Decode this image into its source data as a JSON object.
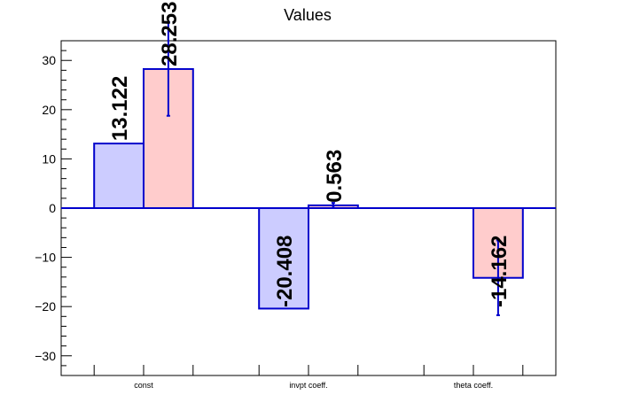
{
  "chart_data": {
    "type": "bar",
    "title": "Values",
    "xlabel": "",
    "ylabel": "",
    "ylim": [
      -34,
      34
    ],
    "yticks": [
      -30,
      -20,
      -10,
      0,
      10,
      20,
      30
    ],
    "ytick_labels": [
      "−30",
      "−20",
      "−10",
      "0",
      "10",
      "20",
      "30"
    ],
    "categories": [
      "const",
      "invpt coeff.",
      "theta coeff."
    ],
    "series": [
      {
        "color": "#ccccff",
        "values": [
          13.122,
          -20.408,
          null
        ],
        "labels": [
          "13.122",
          "-20.408",
          ""
        ],
        "errors": [
          0,
          0,
          0
        ]
      },
      {
        "color": "#ffcccc",
        "values": [
          28.253,
          0.563,
          -14.162
        ],
        "labels": [
          "28.253",
          "0.563",
          "-14.162"
        ],
        "errors": [
          9.5,
          0.5,
          7.6
        ]
      }
    ],
    "outline_color": "#0000cc",
    "grid": false,
    "legend": "none"
  }
}
